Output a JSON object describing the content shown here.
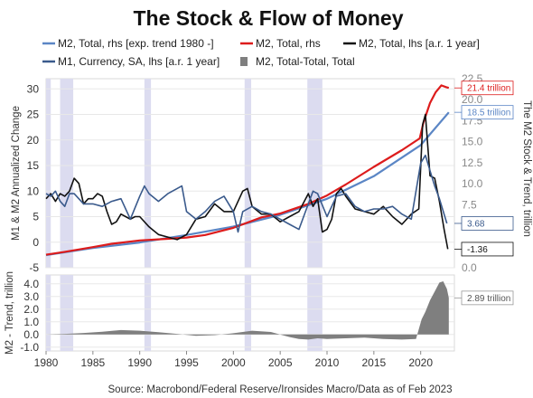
{
  "chart_data": {
    "type": "line",
    "title": "The Stock & Flow of Money",
    "source": "Source: Macrobond/Federal Reserve/Ironsides Macro/Data as of Feb 2023",
    "colors": {
      "m2_trend": "#5b86c5",
      "m2_total_rhs": "#dd1c1c",
      "m2_lhs": "#111111",
      "m1_lhs": "#3a5a8c",
      "gap_bars": "#7f7f7f",
      "recession": "#dcdcf0"
    },
    "legend": [
      {
        "label": "M2, Total, rhs [exp. trend 1980 -]",
        "style": "line",
        "color": "#5b86c5"
      },
      {
        "label": "M2, Total, rhs",
        "style": "line",
        "color": "#dd1c1c"
      },
      {
        "label": "M2, Total, lhs [a.r. 1 year]",
        "style": "line",
        "color": "#111111"
      },
      {
        "label": "M1, Currency, SA, lhs [a.r. 1 year]",
        "style": "line",
        "color": "#3a5a8c"
      },
      {
        "label": "M2, Total-Total, Total",
        "style": "bar",
        "color": "#7f7f7f"
      }
    ],
    "x_ticks": [
      "1980",
      "1985",
      "1990",
      "1995",
      "2000",
      "2005",
      "2010",
      "2015",
      "2020"
    ],
    "xlim": [
      1980,
      2023.6
    ],
    "recessions": [
      [
        1980.0,
        1980.5
      ],
      [
        1981.5,
        1982.9
      ],
      [
        1990.5,
        1991.2
      ],
      [
        2001.2,
        2001.9
      ],
      [
        2007.9,
        2009.5
      ]
    ],
    "top_panel": {
      "ylabel_left": "M1 & M2 Annualized Change",
      "ylabel_right": "The M2 Stock & Trend, trillion",
      "ylim_left": [
        -5,
        32
      ],
      "left_ticks": [
        "30",
        "25",
        "20",
        "15",
        "10",
        "5",
        "0",
        "-5"
      ],
      "ylim_right": [
        0,
        22.5
      ],
      "right_ticks": [
        "22.5",
        "20.0",
        "17.5",
        "15.0",
        "12.5",
        "10.0",
        "7.5",
        "5.0",
        "2.5",
        "0.0"
      ],
      "series": [
        {
          "name": "M2, Total, rhs [exp. trend 1980 -]",
          "axis": "right",
          "color": "#5b86c5",
          "x": [
            1980,
            1985,
            1990,
            1995,
            2000,
            2005,
            2010,
            2015,
            2020,
            2023
          ],
          "y": [
            1.5,
            2.35,
            3.0,
            3.9,
            4.9,
            6.3,
            8.2,
            10.9,
            14.6,
            18.5
          ]
        },
        {
          "name": "M2, Total, rhs",
          "axis": "right",
          "color": "#dd1c1c",
          "x": [
            1980,
            1982,
            1985,
            1987,
            1990,
            1993,
            1995,
            1997,
            2000,
            2003,
            2005,
            2008,
            2010,
            2012,
            2015,
            2018,
            2019.9,
            2020.3,
            2021,
            2021.6,
            2022.2,
            2022.7,
            2023
          ],
          "y": [
            1.55,
            1.9,
            2.45,
            2.85,
            3.25,
            3.45,
            3.6,
            3.9,
            4.75,
            6.0,
            6.45,
            7.6,
            8.6,
            9.9,
            12.0,
            14.0,
            15.4,
            17.3,
            19.6,
            20.9,
            21.7,
            21.5,
            21.4
          ]
        },
        {
          "name": "M2, Total, lhs [a.r. 1 year]",
          "axis": "left",
          "color": "#111111",
          "x": [
            1980,
            1980.5,
            1981,
            1981.5,
            1982,
            1982.5,
            1983,
            1983.5,
            1984,
            1984.5,
            1985,
            1985.5,
            1986,
            1986.5,
            1987,
            1987.5,
            1988,
            1988.5,
            1989,
            1989.5,
            1990,
            1991,
            1992,
            1993,
            1994,
            1995,
            1996,
            1997,
            1998,
            1999,
            2000,
            2001,
            2001.5,
            2002,
            2003,
            2004,
            2005,
            2006,
            2007,
            2008,
            2008.5,
            2009,
            2009.5,
            2010,
            2010.5,
            2011,
            2011.5,
            2012,
            2013,
            2014,
            2015,
            2016,
            2017,
            2018,
            2019,
            2019.8,
            2020.2,
            2020.5,
            2021,
            2021.5,
            2022,
            2022.5,
            2022.9
          ],
          "y": [
            8.5,
            9.5,
            8.0,
            9.5,
            9.0,
            10.0,
            12.5,
            11.5,
            7.5,
            8.5,
            8.5,
            9.5,
            9.0,
            6.0,
            3.5,
            4.0,
            5.5,
            5.0,
            4.5,
            5.0,
            5.0,
            3.0,
            1.5,
            1.0,
            0.5,
            1.5,
            4.5,
            5.0,
            7.5,
            6.0,
            6.0,
            10.0,
            10.5,
            7.0,
            5.5,
            5.5,
            4.0,
            5.0,
            6.0,
            9.5,
            7.0,
            8.5,
            2.0,
            2.5,
            4.5,
            9.5,
            10.5,
            9.0,
            6.5,
            6.0,
            5.5,
            7.0,
            5.0,
            3.5,
            5.5,
            6.5,
            23.0,
            25.0,
            13.0,
            12.5,
            8.0,
            2.5,
            -1.36
          ]
        },
        {
          "name": "M1, Currency, SA, lhs [a.r. 1 year]",
          "axis": "left",
          "color": "#3a5a8c",
          "x": [
            1980,
            1980.5,
            1981,
            1981.5,
            1982,
            1982.5,
            1983,
            1984,
            1985,
            1986,
            1987,
            1988,
            1989,
            1990,
            1990.5,
            1991,
            1992,
            1993,
            1994,
            1994.5,
            1995,
            1996,
            1997,
            1998,
            1999,
            2000,
            2000.5,
            2001,
            2002,
            2003,
            2004,
            2005,
            2006,
            2007,
            2008,
            2008.5,
            2009,
            2010,
            2011,
            2012,
            2013,
            2014,
            2015,
            2016,
            2017,
            2018,
            2019,
            2020,
            2020.5,
            2021,
            2021.5,
            2022,
            2022.8
          ],
          "y": [
            9.5,
            9.0,
            10.0,
            8.0,
            7.0,
            9.5,
            9.5,
            7.5,
            7.5,
            7.0,
            8.0,
            8.5,
            4.5,
            9.0,
            11.0,
            9.5,
            8.0,
            9.5,
            10.5,
            11.0,
            6.0,
            4.5,
            6.0,
            8.0,
            9.0,
            6.0,
            2.0,
            6.0,
            7.0,
            6.0,
            5.5,
            4.5,
            3.5,
            2.5,
            7.5,
            10.0,
            9.5,
            5.0,
            9.0,
            9.5,
            7.0,
            6.0,
            6.5,
            6.5,
            7.0,
            5.5,
            4.5,
            15.5,
            17.0,
            14.0,
            11.0,
            8.5,
            3.68
          ]
        }
      ],
      "callouts": [
        {
          "text": "21.4 trillion",
          "color": "#dd1c1c",
          "axis": "right",
          "value": 21.4
        },
        {
          "text": "18.5 trillion",
          "color": "#5b86c5",
          "axis": "right",
          "value": 18.5
        },
        {
          "text": "3.68",
          "color": "#3a5a8c",
          "axis": "left",
          "value": 3.68
        },
        {
          "text": "-1.36",
          "color": "#111111",
          "axis": "left",
          "value": -1.36
        }
      ]
    },
    "bottom_panel": {
      "ylabel": "M2 - Trend, trillion",
      "ylim": [
        -1.3,
        4.7
      ],
      "ticks": [
        "4.0",
        "3.0",
        "2.0",
        "1.0",
        "0.0",
        "-1.0"
      ],
      "series": {
        "name": "M2, Total-Total, Total",
        "color": "#7f7f7f",
        "x": [
          1980,
          1982,
          1984,
          1986,
          1988,
          1990,
          1992,
          1994,
          1996,
          1998,
          2000,
          2002,
          2004,
          2006,
          2007,
          2008,
          2009,
          2010,
          2012,
          2014,
          2016,
          2018,
          2019.5,
          2020.1,
          2020.5,
          2021,
          2021.5,
          2022,
          2022.4,
          2022.8,
          2023
        ],
        "y": [
          0.0,
          0.05,
          0.12,
          0.22,
          0.35,
          0.3,
          0.18,
          0.05,
          -0.1,
          -0.05,
          0.1,
          0.3,
          0.2,
          -0.2,
          -0.35,
          -0.4,
          -0.3,
          -0.35,
          -0.3,
          -0.25,
          -0.35,
          -0.4,
          -0.35,
          1.2,
          1.8,
          2.7,
          3.4,
          4.1,
          4.2,
          3.6,
          2.89
        ]
      },
      "callout": {
        "text": "2.89 trillion",
        "value": 2.89
      }
    }
  }
}
